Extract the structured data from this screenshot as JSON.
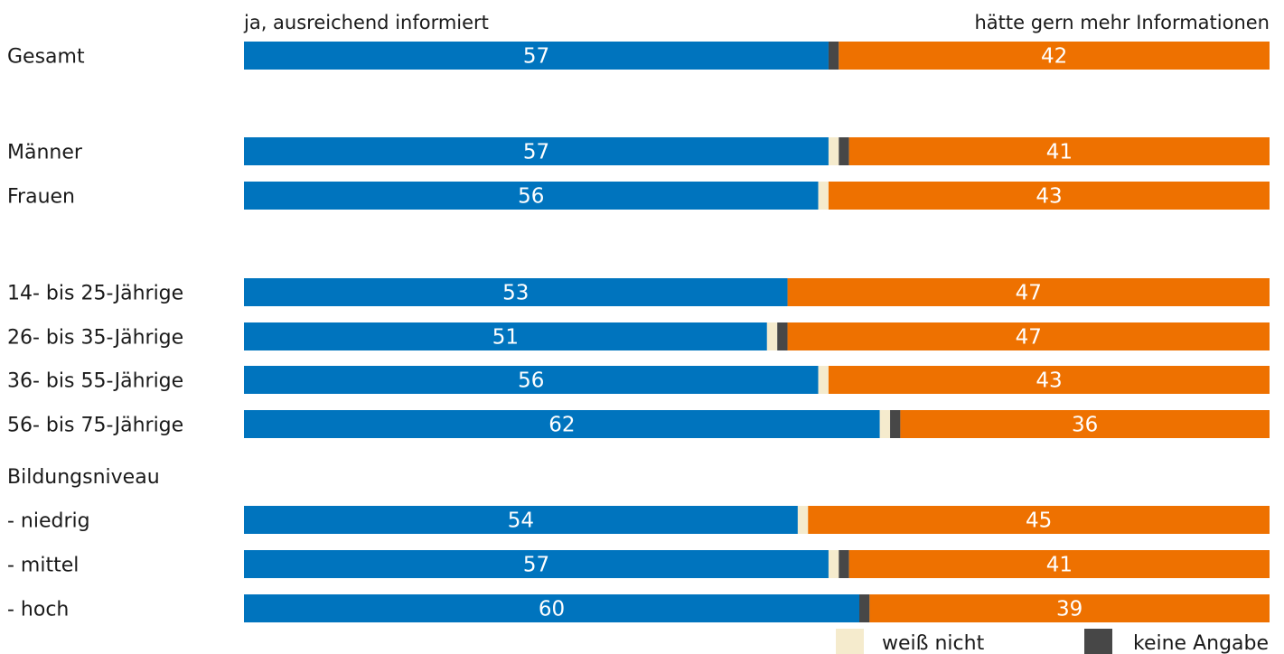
{
  "chart_data": {
    "type": "bar",
    "stacked": true,
    "orientation": "horizontal",
    "header_left": "ja, ausreichend informiert",
    "header_right": "hätte gern mehr Informationen",
    "section_heading": "Bildungsniveau",
    "categories": [
      "Gesamt",
      "Männer",
      "Frauen",
      "14- bis 25-Jährige",
      "26- bis 35-Jährige",
      "36- bis 55-Jährige",
      "56- bis 75-Jährige",
      "- niedrig",
      "- mittel",
      "- hoch"
    ],
    "series": [
      {
        "name": "ja, ausreichend informiert",
        "color": "#0074be",
        "values": [
          57,
          57,
          56,
          53,
          51,
          56,
          62,
          54,
          57,
          60
        ]
      },
      {
        "name": "weiß nicht",
        "color": "#f5ebcd",
        "values": [
          0,
          1,
          1,
          0,
          1,
          1,
          1,
          1,
          1,
          0
        ]
      },
      {
        "name": "keine Angabe",
        "color": "#474747",
        "values": [
          1,
          1,
          0,
          0,
          1,
          0,
          1,
          0,
          1,
          1
        ]
      },
      {
        "name": "hätte gern mehr Informationen",
        "color": "#ee7100",
        "values": [
          42,
          41,
          43,
          47,
          47,
          43,
          36,
          45,
          41,
          39
        ]
      }
    ],
    "legend": [
      {
        "label": "weiß nicht",
        "color": "#f5ebcd"
      },
      {
        "label": "keine Angabe",
        "color": "#474747"
      }
    ],
    "legend_position": "bottom-right",
    "xlim": [
      0,
      100
    ],
    "grid": false
  }
}
